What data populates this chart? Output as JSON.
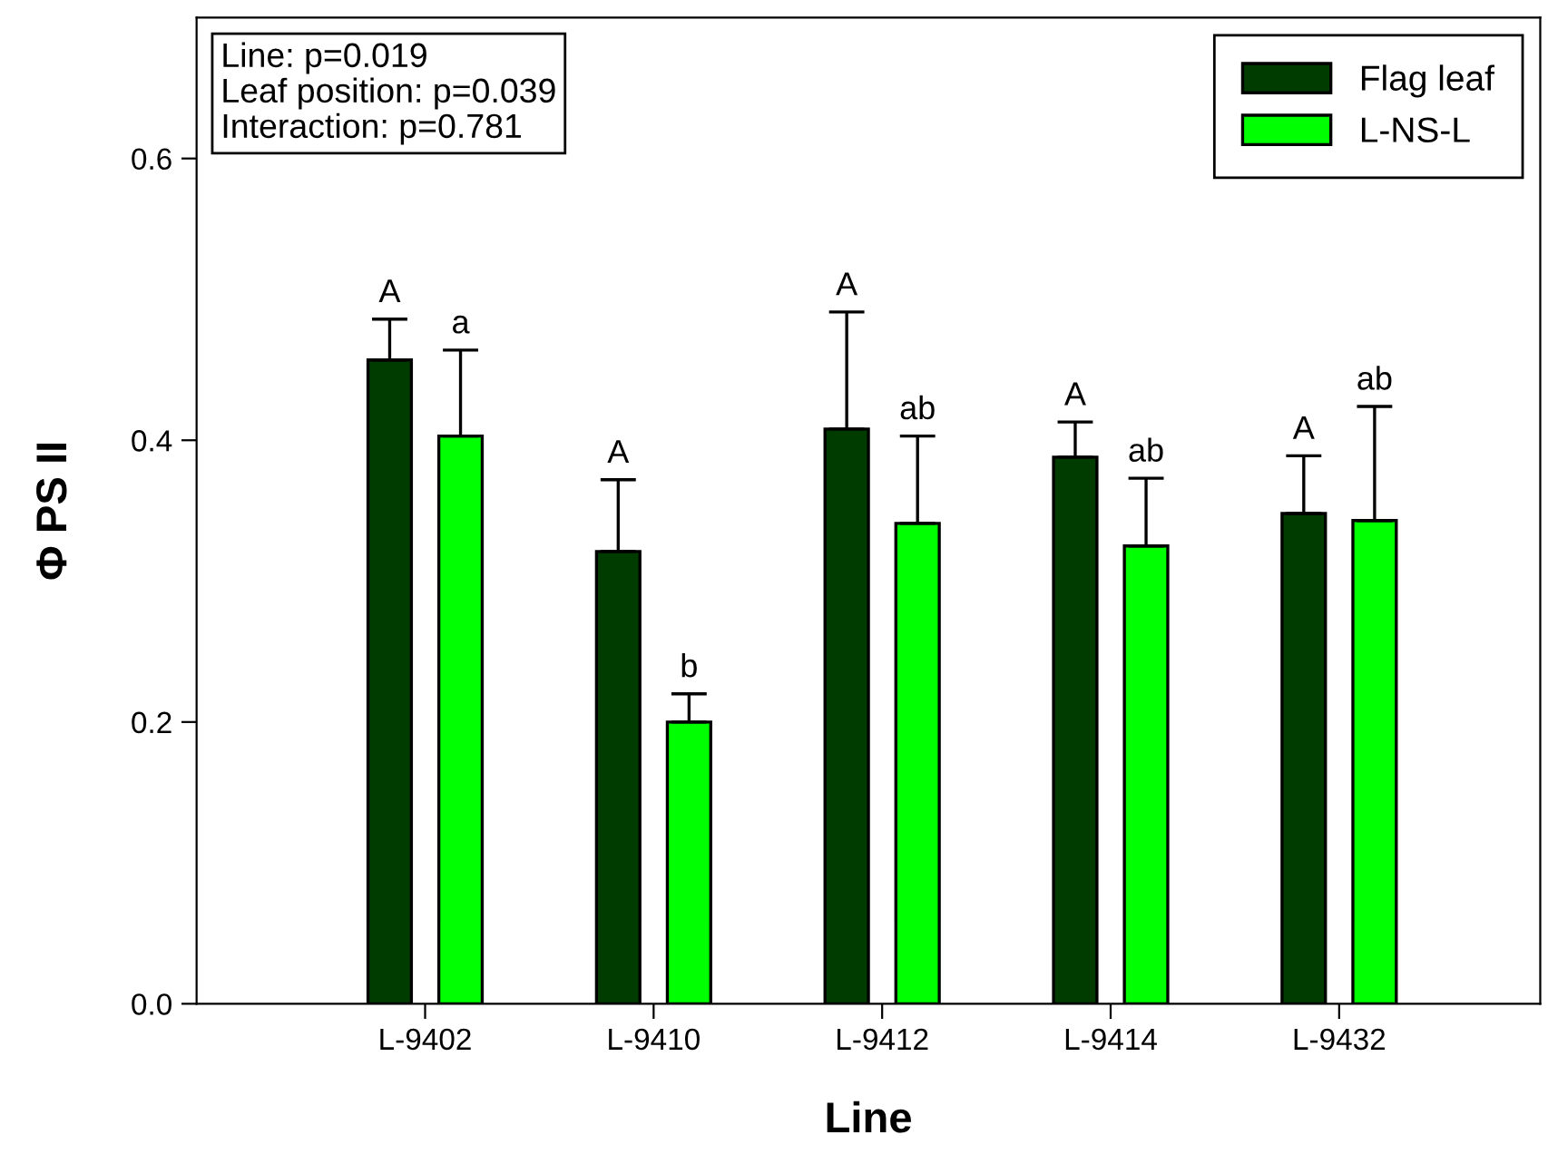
{
  "chart_data": {
    "type": "bar",
    "xlabel": "Line",
    "ylabel": "Φ PS II",
    "categories": [
      "L-9402",
      "L-9410",
      "L-9412",
      "L-9414",
      "L-9432"
    ],
    "series": [
      {
        "name": "Flag leaf",
        "color": "#003c00",
        "values": [
          0.457,
          0.321,
          0.408,
          0.388,
          0.348
        ],
        "errors": [
          [
            0.457,
            0.486
          ],
          [
            0.321,
            0.372
          ],
          [
            0.408,
            0.491
          ],
          [
            0.388,
            0.413
          ],
          [
            0.348,
            0.389
          ]
        ]
      },
      {
        "name": "L-NS-L",
        "color": "#00ff00",
        "values": [
          0.403,
          0.2,
          0.341,
          0.325,
          0.343
        ],
        "errors": [
          [
            0.403,
            0.464
          ],
          [
            0.2,
            0.22
          ],
          [
            0.341,
            0.403
          ],
          [
            0.325,
            0.373
          ],
          [
            0.343,
            0.424
          ]
        ]
      }
    ],
    "ylim": [
      0,
      0.7
    ],
    "yticks": [
      {
        "value": 0,
        "label": "0.0"
      },
      {
        "value": 0.2,
        "label": "0.2"
      },
      {
        "value": 0.4,
        "label": "0.4"
      },
      {
        "value": 0.6,
        "label": "0.6"
      }
    ],
    "grid": false,
    "legend": "top right",
    "annotations": [
      "Line: p=0.019\nLeaf position: p=0.039\nInteraction: p=0.781",
      "A",
      "a",
      "A",
      "b",
      "A",
      "ab",
      "A",
      "ab",
      "A",
      "ab"
    ]
  }
}
